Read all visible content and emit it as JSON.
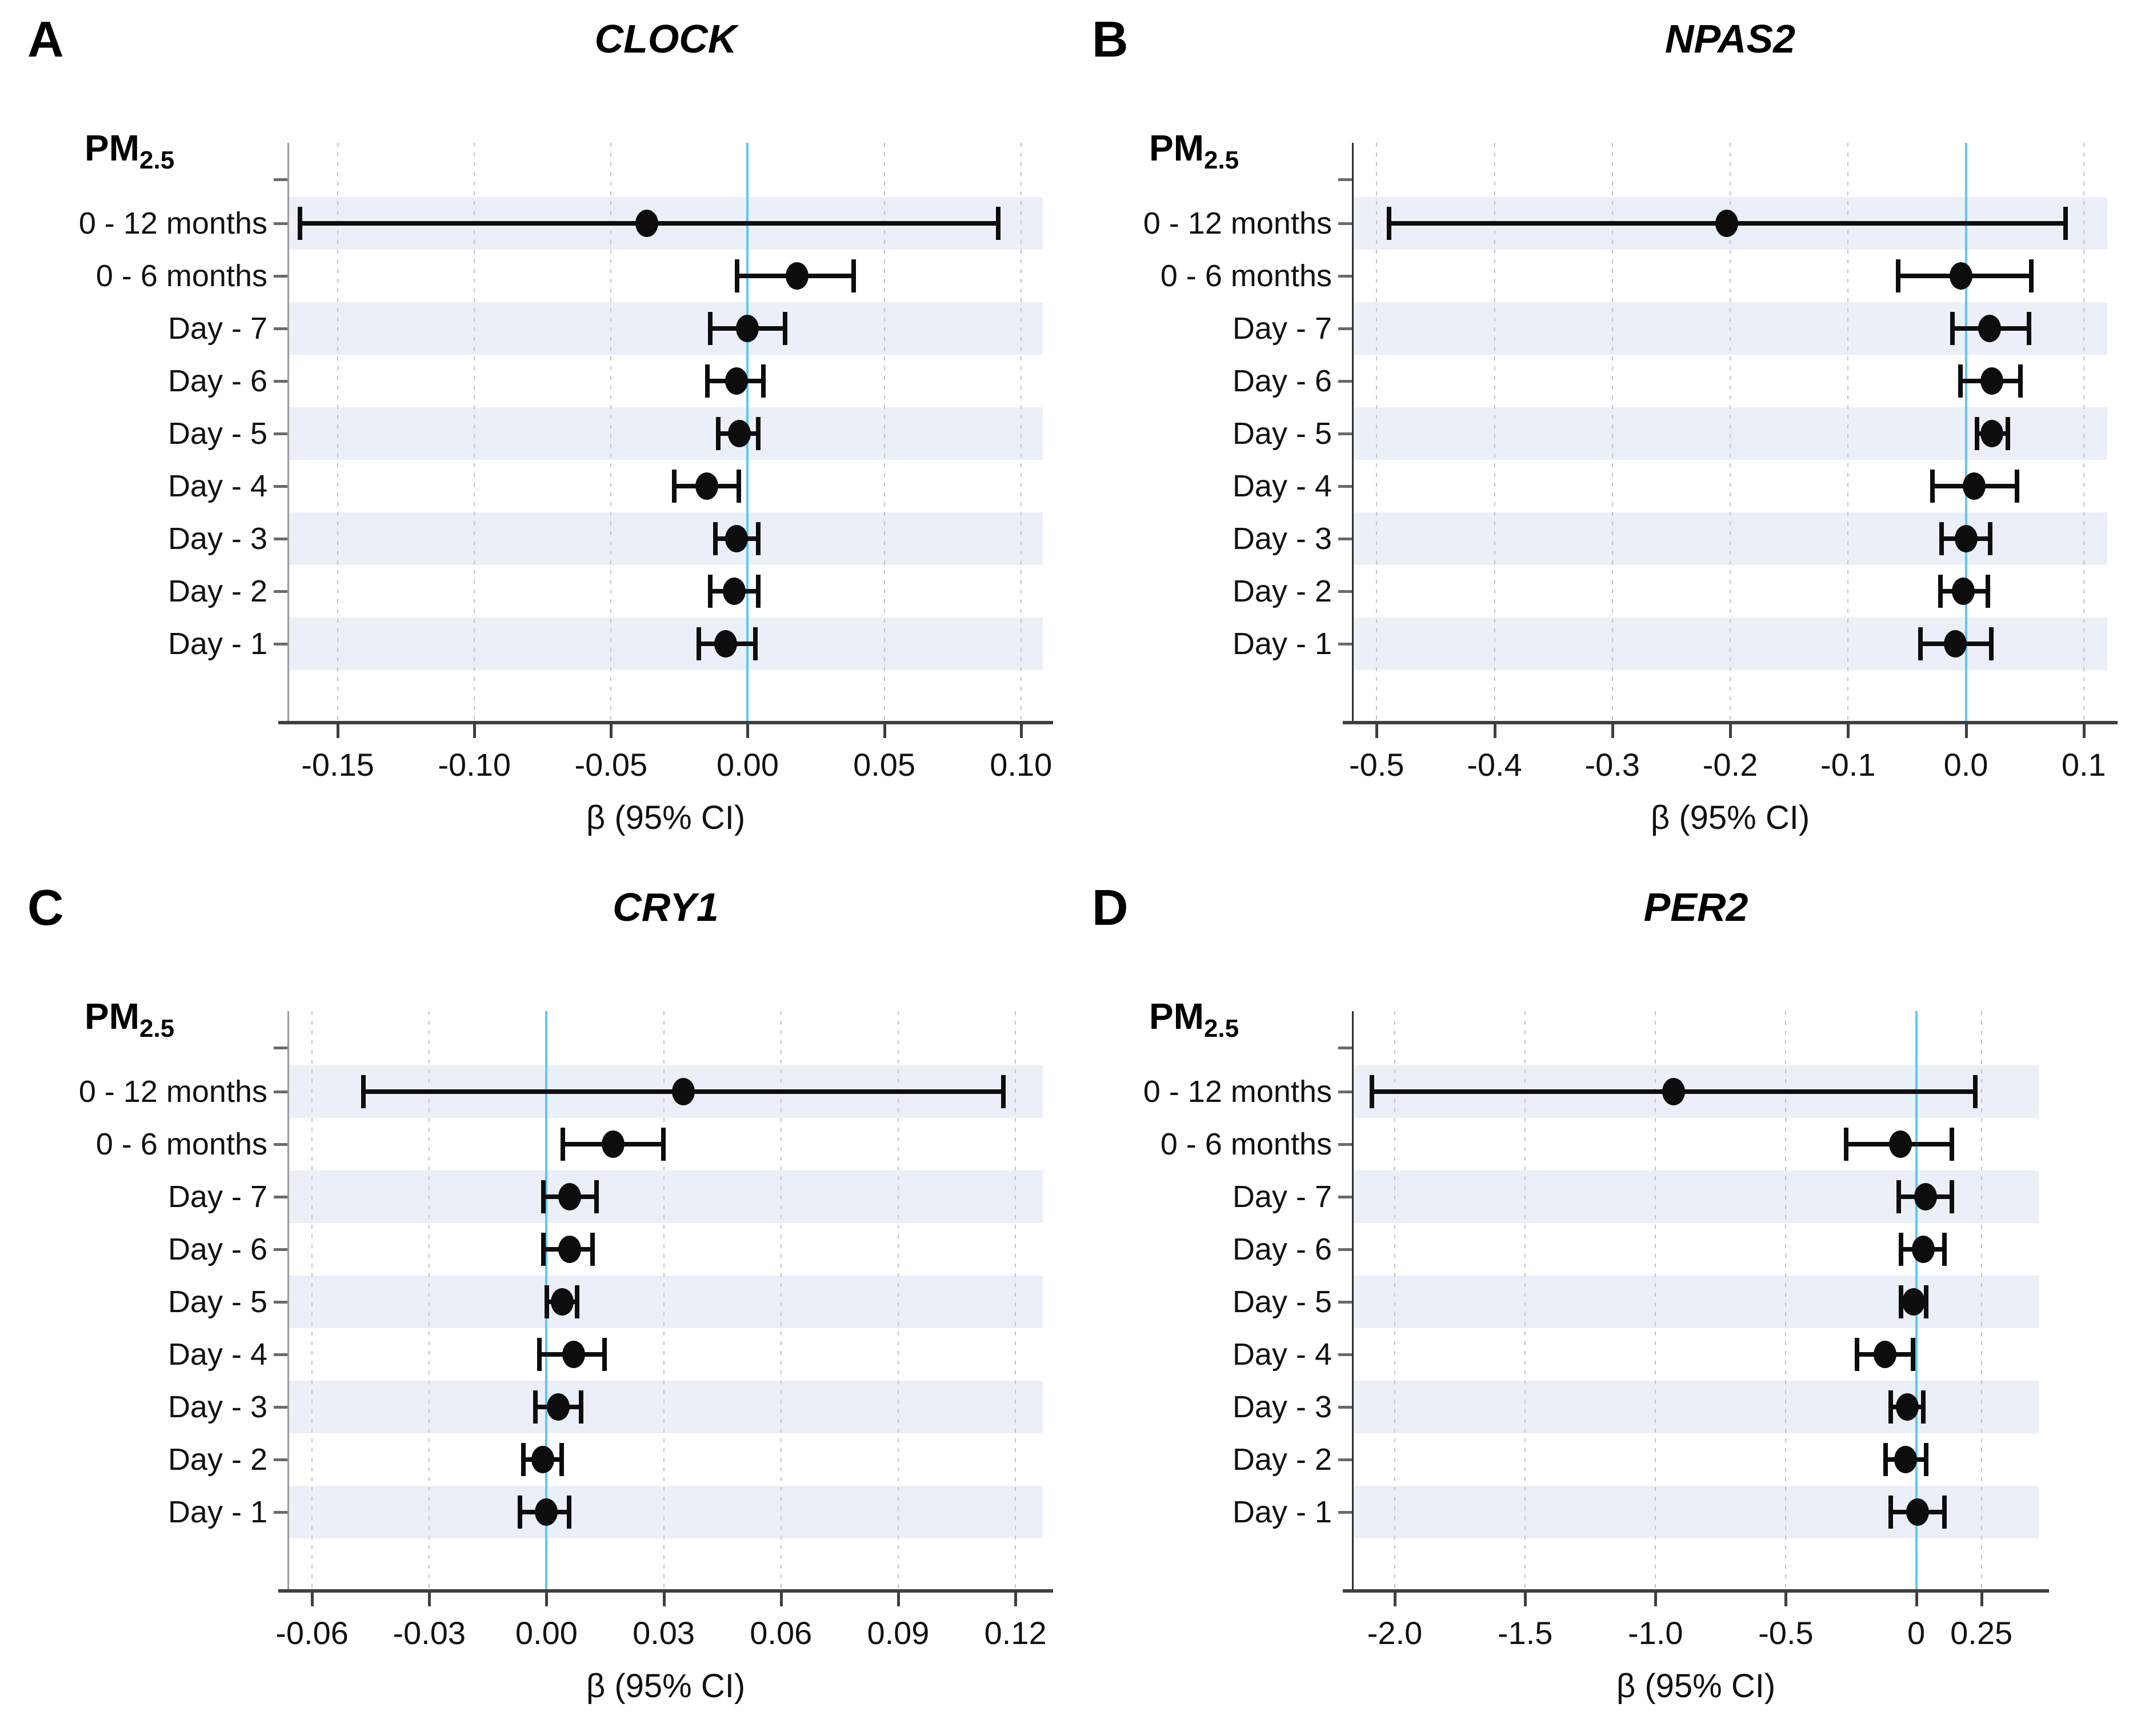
{
  "figure": {
    "pm_label": "PM",
    "pm_sub": "2.5",
    "xlabel": "β (95% CI)",
    "colors": {
      "band": "#EAEFF8",
      "zero_line": "#5BC8F3",
      "gridline": "#C3C3C3",
      "marker": "#0D0D0D",
      "axis": "#3F3F3F"
    }
  },
  "chart_data": [
    {
      "type": "forest",
      "panel": "A",
      "title": "CLOCK",
      "group_label": "PM2.5",
      "xlabel": "β (95% CI)",
      "xlim": [
        -0.168,
        0.108
      ],
      "zero_line": 0,
      "grid": true,
      "ticks": [
        -0.15,
        -0.1,
        -0.05,
        0.0,
        0.05,
        0.1
      ],
      "tick_labels": [
        "-0.15",
        "-0.10",
        "-0.05",
        "0.00",
        "0.05",
        "0.10"
      ],
      "categories": [
        "0 - 12 months",
        "0 - 6 months",
        "Day - 7",
        "Day - 6",
        "Day - 5",
        "Day - 4",
        "Day - 3",
        "Day - 2",
        "Day - 1"
      ],
      "estimates": [
        -0.037,
        0.018,
        0.0,
        -0.004,
        -0.003,
        -0.015,
        -0.004,
        -0.005,
        -0.008
      ],
      "ci_low": [
        -0.164,
        -0.004,
        -0.014,
        -0.015,
        -0.011,
        -0.027,
        -0.012,
        -0.014,
        -0.018
      ],
      "ci_high": [
        0.092,
        0.039,
        0.014,
        0.006,
        0.004,
        -0.003,
        0.004,
        0.004,
        0.003
      ]
    },
    {
      "type": "forest",
      "panel": "B",
      "title": "NPAS2",
      "group_label": "PM2.5",
      "xlabel": "β (95% CI)",
      "xlim": [
        -0.52,
        0.12
      ],
      "zero_line": 0,
      "grid": true,
      "ticks": [
        -0.5,
        -0.4,
        -0.3,
        -0.2,
        -0.1,
        0.0,
        0.1
      ],
      "tick_labels": [
        "-0.5",
        "-0.4",
        "-0.3",
        "-0.2",
        "-0.1",
        "0.0",
        "0.1"
      ],
      "categories": [
        "0 - 12 months",
        "0 - 6 months",
        "Day - 7",
        "Day - 6",
        "Day - 5",
        "Day - 4",
        "Day - 3",
        "Day - 2",
        "Day - 1"
      ],
      "estimates": [
        -0.203,
        -0.004,
        0.02,
        0.022,
        0.022,
        0.007,
        0.0,
        -0.002,
        -0.009
      ],
      "ci_low": [
        -0.49,
        -0.058,
        -0.012,
        -0.005,
        0.009,
        -0.029,
        -0.021,
        -0.022,
        -0.039
      ],
      "ci_high": [
        0.085,
        0.056,
        0.054,
        0.047,
        0.036,
        0.044,
        0.021,
        0.019,
        0.022
      ]
    },
    {
      "type": "forest",
      "panel": "C",
      "title": "CRY1",
      "group_label": "PM2.5",
      "xlabel": "β (95% CI)",
      "xlim": [
        -0.066,
        0.127
      ],
      "zero_line": 0,
      "grid": true,
      "ticks": [
        -0.06,
        -0.03,
        0.0,
        0.03,
        0.06,
        0.09,
        0.12
      ],
      "tick_labels": [
        "-0.06",
        "-0.03",
        "0.00",
        "0.03",
        "0.06",
        "0.09",
        "0.12"
      ],
      "categories": [
        "0 - 12 months",
        "0 - 6 months",
        "Day - 7",
        "Day - 6",
        "Day - 5",
        "Day - 4",
        "Day - 3",
        "Day - 2",
        "Day - 1"
      ],
      "estimates": [
        0.035,
        0.017,
        0.006,
        0.006,
        0.004,
        0.007,
        0.003,
        -0.001,
        0.0
      ],
      "ci_low": [
        -0.047,
        0.004,
        -0.001,
        -0.001,
        0.0,
        -0.002,
        -0.003,
        -0.006,
        -0.007
      ],
      "ci_high": [
        0.117,
        0.03,
        0.013,
        0.012,
        0.008,
        0.015,
        0.009,
        0.004,
        0.006
      ]
    },
    {
      "type": "forest",
      "panel": "D",
      "title": "PER2",
      "group_label": "PM2.5",
      "xlabel": "β (95% CI)",
      "xlim": [
        -2.16,
        0.47
      ],
      "zero_line": 0,
      "grid": true,
      "ticks": [
        -2.0,
        -1.5,
        -1.0,
        -0.5,
        0,
        0.25
      ],
      "tick_labels": [
        "-2.0",
        "-1.5",
        "-1.0",
        "-0.5",
        "0",
        "0.25"
      ],
      "categories": [
        "0 - 12 months",
        "0 - 6 months",
        "Day - 7",
        "Day - 6",
        "Day - 5",
        "Day - 4",
        "Day - 3",
        "Day - 2",
        "Day - 1"
      ],
      "estimates": [
        -0.93,
        -0.06,
        0.035,
        0.027,
        -0.01,
        -0.12,
        -0.035,
        -0.04,
        0.005
      ],
      "ci_low": [
        -2.09,
        -0.27,
        -0.07,
        -0.06,
        -0.06,
        -0.23,
        -0.1,
        -0.12,
        -0.1
      ],
      "ci_high": [
        0.23,
        0.14,
        0.14,
        0.11,
        0.04,
        -0.01,
        0.03,
        0.04,
        0.11
      ]
    }
  ]
}
